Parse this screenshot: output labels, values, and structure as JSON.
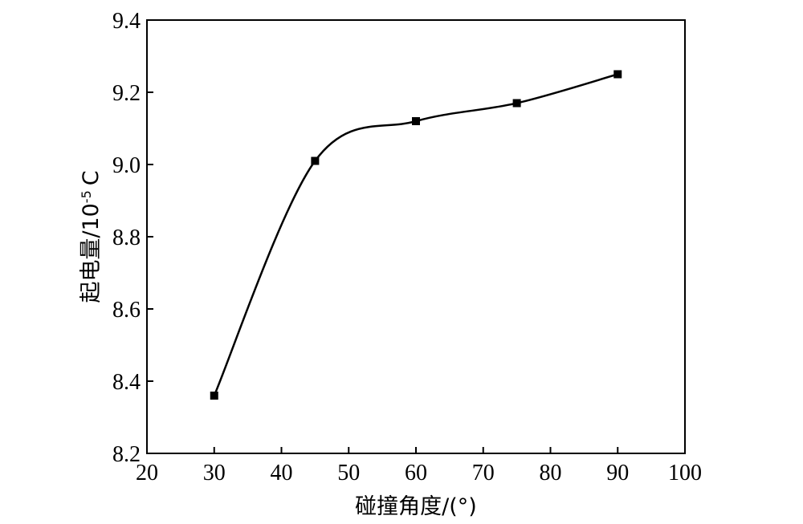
{
  "chart_data": {
    "type": "line",
    "title": "",
    "xlabel": "碰撞角度/(°)",
    "ylabel_main": "起电量/10",
    "ylabel_exp": "-5",
    "ylabel_unit": "C",
    "xlim": [
      20,
      100
    ],
    "ylim": [
      8.2,
      9.4
    ],
    "x_ticks": [
      20,
      30,
      40,
      50,
      60,
      70,
      80,
      90,
      100
    ],
    "y_ticks": [
      "8.2",
      "8.4",
      "8.6",
      "8.8",
      "9.0",
      "9.2",
      "9.4"
    ],
    "grid": false,
    "marker": "square",
    "line": "smooth",
    "series": [
      {
        "x": [
          30,
          45,
          60,
          75,
          90
        ],
        "values": [
          8.36,
          9.01,
          9.12,
          9.17,
          9.25
        ]
      }
    ]
  }
}
